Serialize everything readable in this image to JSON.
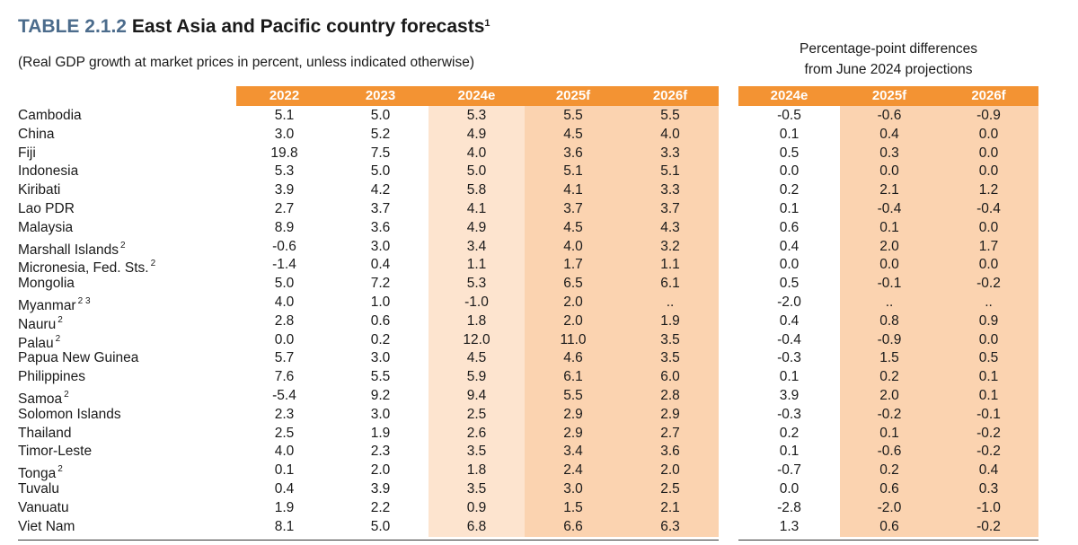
{
  "title": {
    "label": "TABLE 2.1.2",
    "text": "East Asia and Pacific country forecasts",
    "note": "1"
  },
  "subtitle": "(Real GDP growth at market prices in percent, unless indicated otherwise)",
  "diff_header": {
    "line1": "Percentage-point differences",
    "line2": "from June 2024 projections"
  },
  "colors": {
    "header": "#f39333",
    "light": "#fde4cf",
    "mid": "#fbd3b0",
    "rule": "#333333"
  },
  "columns": [
    "2022",
    "2023",
    "2024e",
    "2025f",
    "2026f"
  ],
  "diff_columns": [
    "2024e",
    "2025f",
    "2026f"
  ],
  "rows": [
    {
      "name": "Cambodia",
      "note": "",
      "values": [
        "5.1",
        "5.0",
        "5.3",
        "5.5",
        "5.5"
      ],
      "diffs": [
        "-0.5",
        "-0.6",
        "-0.9"
      ]
    },
    {
      "name": "China",
      "note": "",
      "values": [
        "3.0",
        "5.2",
        "4.9",
        "4.5",
        "4.0"
      ],
      "diffs": [
        "0.1",
        "0.4",
        "0.0"
      ]
    },
    {
      "name": "Fiji",
      "note": "",
      "values": [
        "19.8",
        "7.5",
        "4.0",
        "3.6",
        "3.3"
      ],
      "diffs": [
        "0.5",
        "0.3",
        "0.0"
      ]
    },
    {
      "name": "Indonesia",
      "note": "",
      "values": [
        "5.3",
        "5.0",
        "5.0",
        "5.1",
        "5.1"
      ],
      "diffs": [
        "0.0",
        "0.0",
        "0.0"
      ]
    },
    {
      "name": "Kiribati",
      "note": "",
      "values": [
        "3.9",
        "4.2",
        "5.8",
        "4.1",
        "3.3"
      ],
      "diffs": [
        "0.2",
        "2.1",
        "1.2"
      ]
    },
    {
      "name": "Lao PDR",
      "note": "",
      "values": [
        "2.7",
        "3.7",
        "4.1",
        "3.7",
        "3.7"
      ],
      "diffs": [
        "0.1",
        "-0.4",
        "-0.4"
      ]
    },
    {
      "name": "Malaysia",
      "note": "",
      "values": [
        "8.9",
        "3.6",
        "4.9",
        "4.5",
        "4.3"
      ],
      "diffs": [
        "0.6",
        "0.1",
        "0.0"
      ]
    },
    {
      "name": "Marshall Islands",
      "note": "2",
      "values": [
        "-0.6",
        "3.0",
        "3.4",
        "4.0",
        "3.2"
      ],
      "diffs": [
        "0.4",
        "2.0",
        "1.7"
      ]
    },
    {
      "name": "Micronesia, Fed. Sts.",
      "note": "2",
      "values": [
        "-1.4",
        "0.4",
        "1.1",
        "1.7",
        "1.1"
      ],
      "diffs": [
        "0.0",
        "0.0",
        "0.0"
      ]
    },
    {
      "name": "Mongolia",
      "note": "",
      "values": [
        "5.0",
        "7.2",
        "5.3",
        "6.5",
        "6.1"
      ],
      "diffs": [
        "0.5",
        "-0.1",
        "-0.2"
      ]
    },
    {
      "name": "Myanmar",
      "note": "2 3",
      "values": [
        "4.0",
        "1.0",
        "-1.0",
        "2.0",
        ".."
      ],
      "diffs": [
        "-2.0",
        "..",
        ".."
      ]
    },
    {
      "name": "Nauru",
      "note": "2",
      "values": [
        "2.8",
        "0.6",
        "1.8",
        "2.0",
        "1.9"
      ],
      "diffs": [
        "0.4",
        "0.8",
        "0.9"
      ]
    },
    {
      "name": "Palau",
      "note": "2",
      "values": [
        "0.0",
        "0.2",
        "12.0",
        "11.0",
        "3.5"
      ],
      "diffs": [
        "-0.4",
        "-0.9",
        "0.0"
      ]
    },
    {
      "name": "Papua New Guinea",
      "note": "",
      "values": [
        "5.7",
        "3.0",
        "4.5",
        "4.6",
        "3.5"
      ],
      "diffs": [
        "-0.3",
        "1.5",
        "0.5"
      ]
    },
    {
      "name": "Philippines",
      "note": "",
      "values": [
        "7.6",
        "5.5",
        "5.9",
        "6.1",
        "6.0"
      ],
      "diffs": [
        "0.1",
        "0.2",
        "0.1"
      ]
    },
    {
      "name": "Samoa",
      "note": "2",
      "values": [
        "-5.4",
        "9.2",
        "9.4",
        "5.5",
        "2.8"
      ],
      "diffs": [
        "3.9",
        "2.0",
        "0.1"
      ]
    },
    {
      "name": "Solomon Islands",
      "note": "",
      "values": [
        "2.3",
        "3.0",
        "2.5",
        "2.9",
        "2.9"
      ],
      "diffs": [
        "-0.3",
        "-0.2",
        "-0.1"
      ]
    },
    {
      "name": "Thailand",
      "note": "",
      "values": [
        "2.5",
        "1.9",
        "2.6",
        "2.9",
        "2.7"
      ],
      "diffs": [
        "0.2",
        "0.1",
        "-0.2"
      ]
    },
    {
      "name": "Timor-Leste",
      "note": "",
      "values": [
        "4.0",
        "2.3",
        "3.5",
        "3.4",
        "3.6"
      ],
      "diffs": [
        "0.1",
        "-0.6",
        "-0.2"
      ]
    },
    {
      "name": "Tonga",
      "note": "2",
      "values": [
        "0.1",
        "2.0",
        "1.8",
        "2.4",
        "2.0"
      ],
      "diffs": [
        "-0.7",
        "0.2",
        "0.4"
      ]
    },
    {
      "name": "Tuvalu",
      "note": "",
      "values": [
        "0.4",
        "3.9",
        "3.5",
        "3.0",
        "2.5"
      ],
      "diffs": [
        "0.0",
        "0.6",
        "0.3"
      ]
    },
    {
      "name": "Vanuatu",
      "note": "",
      "values": [
        "1.9",
        "2.2",
        "0.9",
        "1.5",
        "2.1"
      ],
      "diffs": [
        "-2.8",
        "-2.0",
        "-1.0"
      ]
    },
    {
      "name": "Viet Nam",
      "note": "",
      "values": [
        "8.1",
        "5.0",
        "6.8",
        "6.6",
        "6.3"
      ],
      "diffs": [
        "1.3",
        "0.6",
        "-0.2"
      ]
    }
  ]
}
